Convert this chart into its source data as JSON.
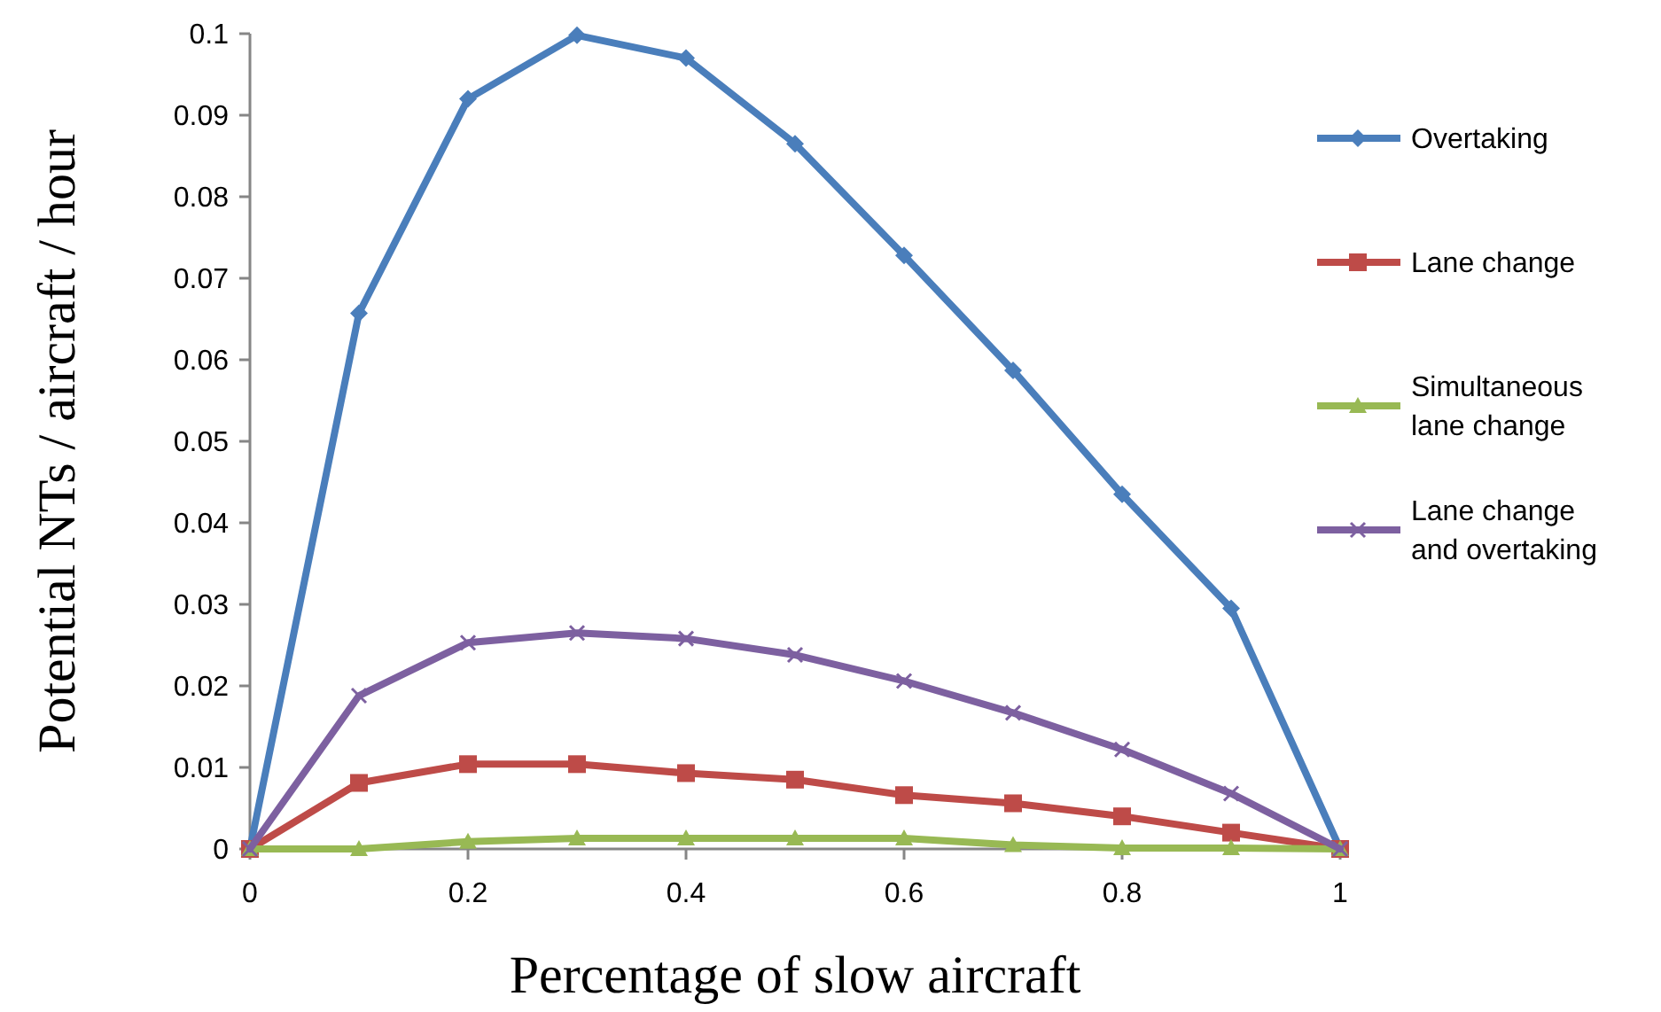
{
  "chart_data": {
    "type": "line",
    "xlabel": "Percentage of slow aircraft",
    "ylabel": "Potential NTs / aircraft / hour",
    "x": [
      0,
      0.1,
      0.2,
      0.3,
      0.4,
      0.5,
      0.6,
      0.7,
      0.8,
      0.9,
      1
    ],
    "xlim": [
      0,
      1
    ],
    "xticks": [
      0,
      0.2,
      0.4,
      0.6,
      0.8,
      1
    ],
    "ylim": [
      0,
      0.1
    ],
    "yticks": [
      0,
      0.01,
      0.02,
      0.03,
      0.04,
      0.05,
      0.06,
      0.07,
      0.08,
      0.09,
      0.1
    ],
    "grid": false,
    "legend": "right",
    "series": [
      {
        "name": "Overtaking",
        "color": "#4a7ebb",
        "marker": "diamond",
        "values": [
          0,
          0.0657,
          0.092,
          0.0998,
          0.097,
          0.0865,
          0.0728,
          0.0587,
          0.0435,
          0.0295,
          0
        ]
      },
      {
        "name": "Lane change",
        "color": "#be4b48",
        "marker": "square",
        "values": [
          0,
          0.0081,
          0.0104,
          0.0104,
          0.0093,
          0.0085,
          0.0066,
          0.0056,
          0.004,
          0.002,
          0
        ]
      },
      {
        "name": "Simultaneous lane change",
        "color": "#98b954",
        "marker": "triangle",
        "values": [
          0,
          0,
          0.0009,
          0.0013,
          0.0013,
          0.0013,
          0.0013,
          0.0005,
          0.0001,
          0.0001,
          0
        ]
      },
      {
        "name": "Lane change and overtaking",
        "color": "#7d60a0",
        "marker": "cross",
        "values": [
          0,
          0.0188,
          0.0253,
          0.0265,
          0.0258,
          0.0238,
          0.0206,
          0.0167,
          0.0122,
          0.0068,
          0
        ]
      }
    ]
  }
}
